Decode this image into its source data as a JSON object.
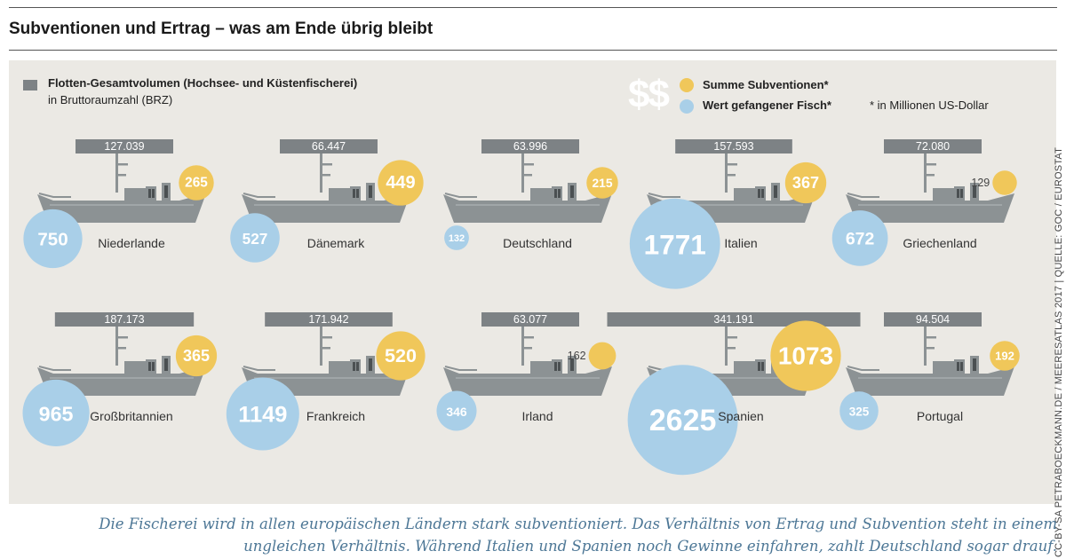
{
  "title": "Subventionen und Ertrag – was am Ende übrig bleibt",
  "legend": {
    "fleet_title": "Flotten-Gesamtvolumen (Hochsee- und Küstenfischerei)",
    "fleet_sub": "in Bruttoraumzahl (BRZ)",
    "dollar_symbol": "$$",
    "subsidies_label": "Summe Subventionen*",
    "catch_label": "Wert gefangener Fisch*",
    "unit_note": "* in Millionen US-Dollar"
  },
  "source": "CC-BY-SA PETRABOECKMANN.DE / MEERESATLAS 2017 | QUELLE: GOC / EUROSTAT",
  "caption": "Die Fischerei wird in allen europäischen Ländern stark subventioniert. Das Verhältnis von Ertrag und Subvention steht in einem ungleichen Verhältnis. Während Italien und Spanien noch Gewinne einfahren, zahlt Deutschland sogar drauf.",
  "colors": {
    "background": "#ebe9e4",
    "fleet_bar": "#7d8285",
    "subsidies": "#f0c75a",
    "catch": "#a9cfe8",
    "boat": "#8c9294",
    "caption": "#4d7796"
  },
  "chart_data": {
    "type": "bubble",
    "title": "Subventionen und Ertrag – was am Ende übrig bleibt",
    "units": {
      "fleet": "BRZ",
      "subsidies": "Millionen US-Dollar",
      "catch": "Millionen US-Dollar"
    },
    "countries": [
      {
        "name": "Niederlande",
        "fleet_label": "127.039",
        "fleet": 127039,
        "subsidies": 265,
        "catch": 750
      },
      {
        "name": "Dänemark",
        "fleet_label": "66.447",
        "fleet": 66447,
        "subsidies": 449,
        "catch": 527
      },
      {
        "name": "Deutschland",
        "fleet_label": "63.996",
        "fleet": 63996,
        "subsidies": 215,
        "catch": 132
      },
      {
        "name": "Italien",
        "fleet_label": "157.593",
        "fleet": 157593,
        "subsidies": 367,
        "catch": 1771
      },
      {
        "name": "Griechenland",
        "fleet_label": "72.080",
        "fleet": 72080,
        "subsidies": 129,
        "catch": 672
      },
      {
        "name": "Großbritannien",
        "fleet_label": "187.173",
        "fleet": 187173,
        "subsidies": 365,
        "catch": 965
      },
      {
        "name": "Frankreich",
        "fleet_label": "171.942",
        "fleet": 171942,
        "subsidies": 520,
        "catch": 1149
      },
      {
        "name": "Irland",
        "fleet_label": "63.077",
        "fleet": 63077,
        "subsidies": 162,
        "catch": 346
      },
      {
        "name": "Spanien",
        "fleet_label": "341.191",
        "fleet": 341191,
        "subsidies": 1073,
        "catch": 2625
      },
      {
        "name": "Portugal",
        "fleet_label": "94.504",
        "fleet": 94504,
        "subsidies": 192,
        "catch": 325
      }
    ]
  }
}
